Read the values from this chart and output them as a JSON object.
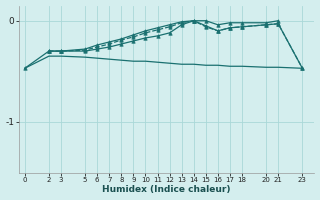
{
  "xlabel": "Humidex (Indice chaleur)",
  "ylabel": "",
  "bg_color": "#d4eeee",
  "grid_color": "#aad8d8",
  "line_color": "#1a7070",
  "ylim": [
    -1.5,
    0.15
  ],
  "xlim": [
    -0.5,
    24
  ],
  "yticks": [
    0,
    -1
  ],
  "xticks": [
    0,
    2,
    3,
    5,
    6,
    7,
    8,
    9,
    10,
    11,
    12,
    13,
    14,
    15,
    16,
    17,
    18,
    20,
    21,
    23
  ],
  "lines": [
    {
      "x": [
        0,
        2,
        3,
        5,
        6,
        7,
        8,
        9,
        10,
        11,
        12,
        13,
        14,
        15,
        16,
        17,
        18,
        20,
        21,
        23
      ],
      "y": [
        -0.47,
        -0.35,
        -0.35,
        -0.36,
        -0.37,
        -0.38,
        -0.39,
        -0.4,
        -0.4,
        -0.41,
        -0.42,
        -0.43,
        -0.43,
        -0.44,
        -0.44,
        -0.45,
        -0.45,
        -0.46,
        -0.46,
        -0.47
      ],
      "marker": null,
      "linestyle": "-",
      "linewidth": 0.9
    },
    {
      "x": [
        0,
        2,
        3,
        5,
        6,
        7,
        8,
        9,
        10,
        11,
        12,
        13,
        14,
        15,
        16,
        17,
        18,
        20,
        21,
        23
      ],
      "y": [
        -0.47,
        -0.3,
        -0.3,
        -0.3,
        -0.28,
        -0.26,
        -0.23,
        -0.2,
        -0.17,
        -0.15,
        -0.12,
        -0.04,
        0.0,
        -0.05,
        -0.1,
        -0.07,
        -0.06,
        -0.04,
        -0.03,
        -0.47
      ],
      "marker": "^",
      "markersize": 2.5,
      "linestyle": "-",
      "linewidth": 0.9
    },
    {
      "x": [
        2,
        3,
        5,
        6,
        7,
        8,
        9,
        10,
        11,
        12,
        13,
        14,
        15,
        16,
        17,
        18,
        20,
        21,
        23
      ],
      "y": [
        -0.3,
        -0.3,
        -0.29,
        -0.26,
        -0.23,
        -0.19,
        -0.16,
        -0.12,
        -0.09,
        -0.06,
        -0.02,
        0.0,
        -0.06,
        -0.1,
        -0.07,
        -0.06,
        -0.04,
        -0.03,
        -0.47
      ],
      "marker": "^",
      "markersize": 2.5,
      "linestyle": "--",
      "linewidth": 0.9
    },
    {
      "x": [
        2,
        3,
        5,
        6,
        7,
        8,
        9,
        10,
        11,
        12,
        13,
        14,
        15,
        16,
        17,
        18,
        20,
        21
      ],
      "y": [
        -0.3,
        -0.3,
        -0.28,
        -0.24,
        -0.21,
        -0.18,
        -0.14,
        -0.1,
        -0.07,
        -0.04,
        -0.01,
        0.0,
        0.0,
        -0.04,
        -0.02,
        -0.02,
        -0.02,
        0.0
      ],
      "marker": "^",
      "markersize": 2.5,
      "linestyle": "-",
      "linewidth": 0.9
    }
  ]
}
